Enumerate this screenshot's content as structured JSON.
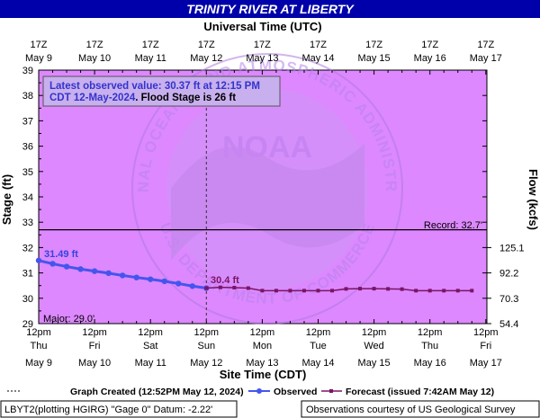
{
  "title": "TRINITY RIVER AT LIBERTY",
  "top_axis_title": "Universal Time (UTC)",
  "bottom_axis_title": "Site Time (CDT)",
  "left_axis_title": "Stage (ft)",
  "right_axis_title": "Flow (kcfs)",
  "top_ticks": [
    {
      "time": "17Z",
      "date": "May  9"
    },
    {
      "time": "17Z",
      "date": "May 10"
    },
    {
      "time": "17Z",
      "date": "May 11"
    },
    {
      "time": "17Z",
      "date": "May 12"
    },
    {
      "time": "17Z",
      "date": "May 13"
    },
    {
      "time": "17Z",
      "date": "May 14"
    },
    {
      "time": "17Z",
      "date": "May 15"
    },
    {
      "time": "17Z",
      "date": "May 16"
    },
    {
      "time": "17Z",
      "date": "May 17"
    }
  ],
  "bottom_ticks": [
    {
      "time": "12pm",
      "day": "Thu",
      "date": "May 9"
    },
    {
      "time": "12pm",
      "day": "Fri",
      "date": "May 10"
    },
    {
      "time": "12pm",
      "day": "Sat",
      "date": "May 11"
    },
    {
      "time": "12pm",
      "day": "Sun",
      "date": "May 12"
    },
    {
      "time": "12pm",
      "day": "Mon",
      "date": "May 13"
    },
    {
      "time": "12pm",
      "day": "Tue",
      "date": "May 14"
    },
    {
      "time": "12pm",
      "day": "Wed",
      "date": "May 15"
    },
    {
      "time": "12pm",
      "day": "Thu",
      "date": "May 16"
    },
    {
      "time": "12pm",
      "day": "Fri",
      "date": "May 17"
    }
  ],
  "info_box": {
    "line1": "Latest observed value: 30.37 ft at 12:15 PM",
    "line2_prefix": "CDT 12-May-2024",
    "line2_suffix": ". Flood Stage is 26 ft"
  },
  "record_label": "Record: 32.7'",
  "major_label": "Major: 29.0'",
  "observed_start_label": "31.49 ft",
  "observed_end_label": "30.4 ft",
  "legend": {
    "created": "Graph Created (12:52PM May 12, 2024)",
    "observed": "Observed",
    "forecast": "Forecast (issued 7:42AM May 12)"
  },
  "footer_left": "LBYT2(plotting HGIRG) \"Gage 0\" Datum:  -2.22'",
  "footer_right": "Observations courtesy of US Geological Survey",
  "colors": {
    "plot_bg": "#dd88ff",
    "observed": "#4455ee",
    "forecast": "#7a1566",
    "info_text": "#3333cc",
    "record_line": "#000000",
    "watermark": "#a06ad8"
  },
  "chart_data": {
    "type": "line",
    "x_axis": "Site Time (CDT), day offset from 12pm May 9",
    "stage_ylim": [
      29,
      39
    ],
    "stage_ticks": [
      29,
      30,
      31,
      32,
      33,
      34,
      35,
      36,
      37,
      38,
      39
    ],
    "flow_ticks": [
      {
        "label": "54.4",
        "stage": 29.0
      },
      {
        "label": "70.3",
        "stage": 30.0
      },
      {
        "label": "92.2",
        "stage": 31.0
      },
      {
        "label": "125.1",
        "stage": 32.0
      }
    ],
    "flood_stage": 26,
    "record_stage": 32.7,
    "major_stage": 29.0,
    "current_time": 3.0,
    "series": [
      {
        "name": "Observed",
        "points": [
          [
            0.0,
            31.49
          ],
          [
            0.25,
            31.36
          ],
          [
            0.5,
            31.25
          ],
          [
            0.75,
            31.15
          ],
          [
            1.0,
            31.07
          ],
          [
            1.25,
            30.99
          ],
          [
            1.5,
            30.9
          ],
          [
            1.75,
            30.82
          ],
          [
            2.0,
            30.75
          ],
          [
            2.25,
            30.67
          ],
          [
            2.5,
            30.58
          ],
          [
            2.75,
            30.48
          ],
          [
            3.0,
            30.4
          ]
        ]
      },
      {
        "name": "Forecast",
        "points": [
          [
            3.0,
            30.4
          ],
          [
            3.25,
            30.43
          ],
          [
            3.5,
            30.42
          ],
          [
            3.75,
            30.4
          ],
          [
            4.0,
            30.3
          ],
          [
            4.25,
            30.3
          ],
          [
            4.5,
            30.3
          ],
          [
            4.75,
            30.3
          ],
          [
            5.0,
            30.3
          ],
          [
            5.25,
            30.3
          ],
          [
            5.5,
            30.37
          ],
          [
            5.75,
            30.38
          ],
          [
            6.0,
            30.38
          ],
          [
            6.25,
            30.37
          ],
          [
            6.5,
            30.36
          ],
          [
            6.75,
            30.3
          ],
          [
            7.0,
            30.3
          ],
          [
            7.25,
            30.3
          ],
          [
            7.5,
            30.3
          ],
          [
            7.75,
            30.3
          ]
        ]
      }
    ]
  }
}
